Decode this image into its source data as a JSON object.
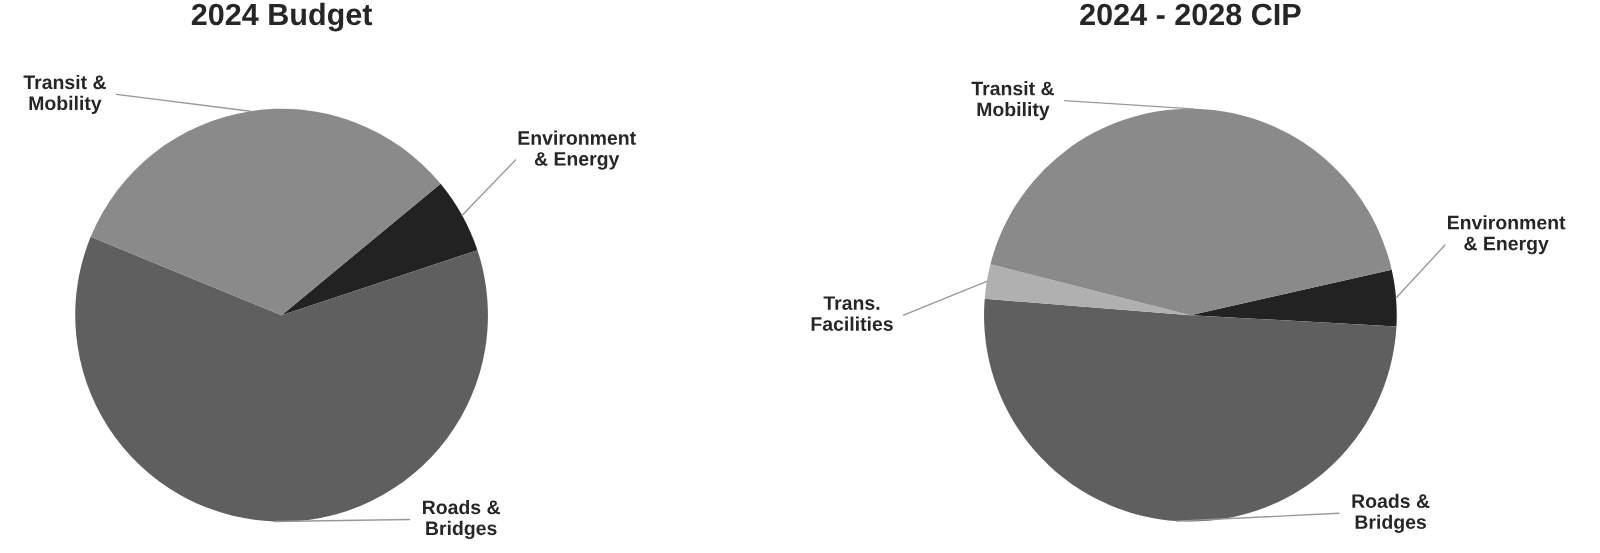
{
  "chart_data": [
    {
      "type": "pie",
      "title": "2024 Budget",
      "categories": [
        "Environment\n& Energy",
        "Roads &\nBridges",
        "Transit &\nMobility"
      ],
      "values": [
        5.9,
        61.3,
        32.8
      ],
      "colors": [
        "#222222",
        "#5f5f5f",
        "#8a8a8a"
      ]
    },
    {
      "type": "pie",
      "title": "2024 - 2028 CIP",
      "categories": [
        "Environment\n& Energy",
        "Roads &\nBridges",
        "Trans.\nFacilities",
        "Transit &\nMobility"
      ],
      "values": [
        4.4,
        50.4,
        2.7,
        42.5
      ],
      "colors": [
        "#222222",
        "#5f5f5f",
        "#b0b0b0",
        "#8a8a8a"
      ]
    }
  ]
}
